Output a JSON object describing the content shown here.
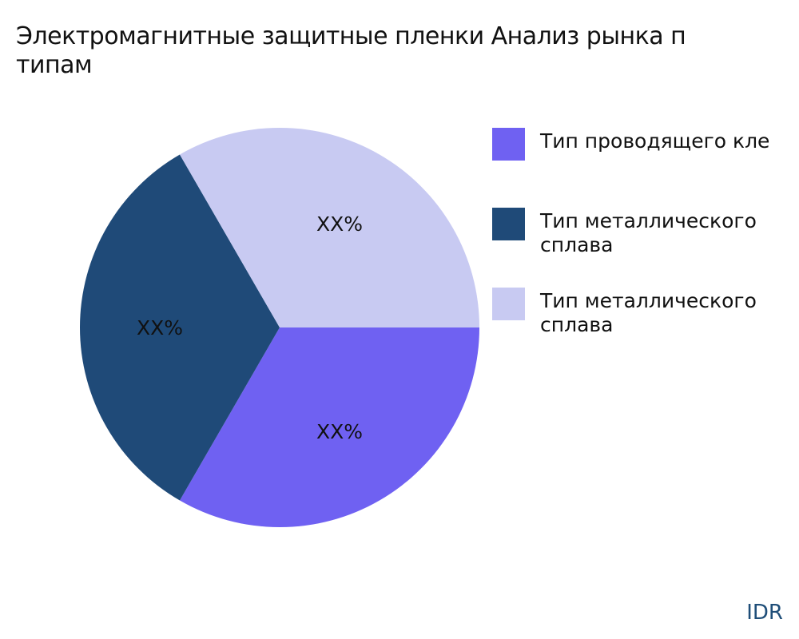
{
  "title": {
    "line1": "Электромагнитные защитные пленки Анализ рынка п",
    "line2": "типам"
  },
  "chart_data": {
    "type": "pie",
    "title": "Электромагнитные защитные пленки Анализ рынка п типам",
    "legend_placement": "right",
    "slices": [
      {
        "legend": [
          "Тип проводящего кле"
        ],
        "value": 33.33,
        "label": "XX%",
        "color": "#6f61f2"
      },
      {
        "legend": [
          "Тип металлического",
          "сплава"
        ],
        "value": 33.33,
        "label": "XX%",
        "color": "#1f4a78"
      },
      {
        "legend": [
          "Тип металлического",
          "сплава"
        ],
        "value": 33.33,
        "label": "XX%",
        "color": "#c8caf2"
      }
    ]
  },
  "watermark": "IDR"
}
